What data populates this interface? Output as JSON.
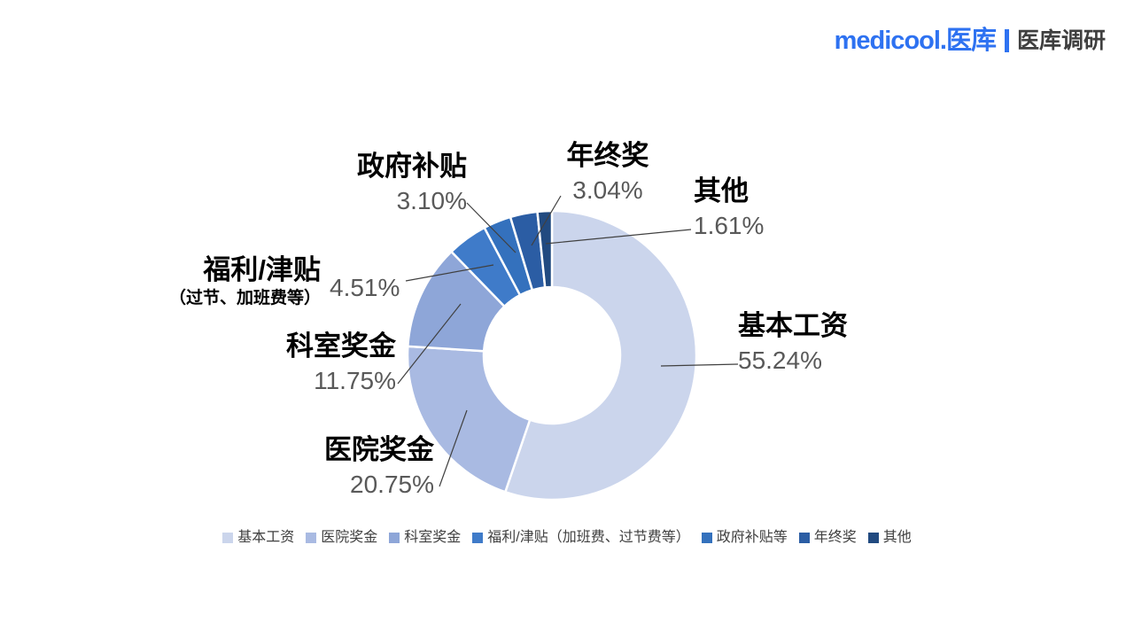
{
  "background": "#ffffff",
  "brand": {
    "logo": "medicool.医库",
    "tagline": "医库调研",
    "logo_color": "#2e72f1",
    "divider_color": "#2e72f1",
    "tagline_color": "#3f3f3f"
  },
  "chart_data": {
    "type": "pie",
    "subtype": "donut",
    "title": "",
    "unit": "%",
    "start_angle_deg": 0,
    "direction": "clockwise",
    "hole_ratio": 0.47,
    "slices": [
      {
        "label": "基本工资",
        "value": 55.24,
        "display": "55.24%",
        "color": "#cbd5ec"
      },
      {
        "label": "医院奖金",
        "value": 20.75,
        "display": "20.75%",
        "color": "#a9bae2"
      },
      {
        "label": "科室奖金",
        "value": 11.75,
        "display": "11.75%",
        "color": "#8ea6d8"
      },
      {
        "label": "福利/津贴",
        "sublabel": "（过节、加班费等）",
        "value": 4.51,
        "display": "4.51%",
        "color": "#3f7bc9"
      },
      {
        "label": "政府补贴",
        "value": 3.1,
        "display": "3.10%",
        "color": "#3471bd"
      },
      {
        "label": "年终奖",
        "value": 3.04,
        "display": "3.04%",
        "color": "#2b5da4"
      },
      {
        "label": "其他",
        "value": 1.61,
        "display": "1.61%",
        "color": "#214a80"
      }
    ],
    "legend": {
      "position": "bottom",
      "items": [
        "基本工资",
        "医院奖金",
        "科室奖金",
        "福利/津贴（加班费、过节费等）",
        "政府补贴等",
        "年终奖",
        "其他"
      ]
    },
    "colors": {
      "label_name": "#000000",
      "label_value": "#595959",
      "leader_line": "#404040",
      "legend_text": "#404040",
      "slice_border": "#ffffff"
    }
  }
}
